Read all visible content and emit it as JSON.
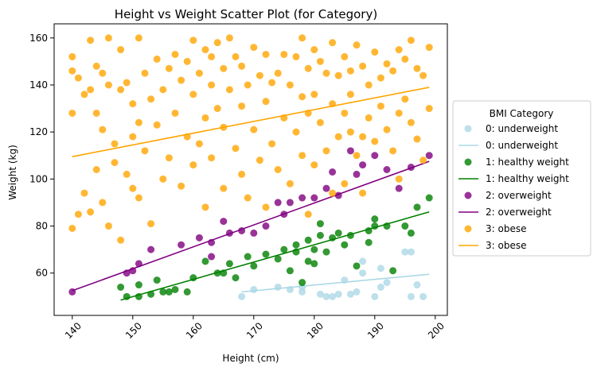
{
  "chart_data": {
    "type": "scatter",
    "title": "Height vs Weight Scatter Plot (for Category)",
    "xlabel": "Height (cm)",
    "ylabel": "Weight (kg)",
    "xlim": [
      137,
      202
    ],
    "ylim": [
      42,
      166
    ],
    "xticks": [
      140,
      150,
      160,
      170,
      180,
      190,
      200
    ],
    "yticks": [
      60,
      80,
      100,
      120,
      140,
      160
    ],
    "grid": false,
    "legend": {
      "title": "BMI Category",
      "placement": "right"
    },
    "series": [
      {
        "name": "0: underweight",
        "color": "#add8e6",
        "fit_label": "0: underweight",
        "fit": [
          [
            168,
            52
          ],
          [
            199,
            59.5
          ]
        ],
        "points": [
          [
            168,
            50
          ],
          [
            170,
            53
          ],
          [
            174,
            54
          ],
          [
            176,
            53
          ],
          [
            178,
            54
          ],
          [
            178,
            52
          ],
          [
            181,
            51
          ],
          [
            182,
            50
          ],
          [
            183,
            50
          ],
          [
            184,
            51
          ],
          [
            185,
            57
          ],
          [
            186,
            51
          ],
          [
            187,
            52
          ],
          [
            188,
            65
          ],
          [
            188,
            60
          ],
          [
            190,
            50
          ],
          [
            191,
            62
          ],
          [
            191,
            54
          ],
          [
            192,
            56
          ],
          [
            195,
            69
          ],
          [
            196,
            69
          ],
          [
            196,
            50
          ],
          [
            197,
            55
          ],
          [
            198,
            50
          ]
        ]
      },
      {
        "name": "1: healthy weight",
        "color": "#008000",
        "fit_label": "1: healthy weight",
        "fit": [
          [
            148,
            48.5
          ],
          [
            199,
            86
          ]
        ],
        "points": [
          [
            148,
            54
          ],
          [
            149,
            50
          ],
          [
            151,
            50
          ],
          [
            151,
            55
          ],
          [
            153,
            51
          ],
          [
            154,
            57
          ],
          [
            155,
            52
          ],
          [
            156,
            52
          ],
          [
            157,
            53
          ],
          [
            159,
            52
          ],
          [
            160,
            58
          ],
          [
            162,
            65
          ],
          [
            164,
            60
          ],
          [
            165,
            60
          ],
          [
            166,
            64
          ],
          [
            167,
            58
          ],
          [
            169,
            67
          ],
          [
            170,
            63
          ],
          [
            172,
            68
          ],
          [
            174,
            66
          ],
          [
            175,
            70
          ],
          [
            176,
            61
          ],
          [
            177,
            72
          ],
          [
            177,
            69
          ],
          [
            178,
            56
          ],
          [
            179,
            65
          ],
          [
            179,
            74
          ],
          [
            180,
            64
          ],
          [
            180,
            70
          ],
          [
            181,
            81
          ],
          [
            181,
            76
          ],
          [
            182,
            69
          ],
          [
            183,
            75
          ],
          [
            184,
            77
          ],
          [
            185,
            72
          ],
          [
            186,
            76
          ],
          [
            187,
            63
          ],
          [
            189,
            73
          ],
          [
            189,
            78
          ],
          [
            190,
            80
          ],
          [
            190,
            83
          ],
          [
            192,
            80
          ],
          [
            193,
            61
          ],
          [
            195,
            80
          ],
          [
            196,
            77
          ],
          [
            197,
            88
          ],
          [
            199,
            92
          ]
        ]
      },
      {
        "name": "2: overweight",
        "color": "#800080",
        "fit_label": "2: overweight",
        "fit": [
          [
            140,
            52.5
          ],
          [
            199,
            107.5
          ]
        ],
        "points": [
          [
            140,
            52
          ],
          [
            149,
            60
          ],
          [
            150,
            61
          ],
          [
            151,
            64
          ],
          [
            153,
            70
          ],
          [
            158,
            72
          ],
          [
            161,
            75
          ],
          [
            163,
            73
          ],
          [
            163,
            67
          ],
          [
            165,
            82
          ],
          [
            166,
            77
          ],
          [
            168,
            78
          ],
          [
            170,
            77
          ],
          [
            172,
            80
          ],
          [
            174,
            90
          ],
          [
            175,
            85
          ],
          [
            176,
            90
          ],
          [
            178,
            92
          ],
          [
            180,
            92
          ],
          [
            182,
            96
          ],
          [
            183,
            103
          ],
          [
            184,
            93
          ],
          [
            186,
            112
          ],
          [
            187,
            102
          ],
          [
            188,
            106
          ],
          [
            190,
            110
          ],
          [
            192,
            104
          ],
          [
            194,
            96
          ],
          [
            196,
            105
          ],
          [
            199,
            110
          ]
        ]
      },
      {
        "name": "3: obese",
        "color": "#ffa500",
        "fit_label": "3: obese",
        "fit": [
          [
            140,
            109.5
          ],
          [
            199,
            139
          ]
        ],
        "points": [
          [
            140,
            152
          ],
          [
            140,
            146
          ],
          [
            140,
            128
          ],
          [
            140,
            79
          ],
          [
            141,
            143
          ],
          [
            141,
            85
          ],
          [
            142,
            136
          ],
          [
            142,
            94
          ],
          [
            143,
            159
          ],
          [
            143,
            138
          ],
          [
            143,
            86
          ],
          [
            144,
            148
          ],
          [
            144,
            128
          ],
          [
            144,
            104
          ],
          [
            145,
            145
          ],
          [
            145,
            121
          ],
          [
            145,
            90
          ],
          [
            146,
            160
          ],
          [
            146,
            140
          ],
          [
            146,
            80
          ],
          [
            147,
            115
          ],
          [
            147,
            107
          ],
          [
            148,
            155
          ],
          [
            148,
            138
          ],
          [
            148,
            74
          ],
          [
            149,
            141
          ],
          [
            149,
            102
          ],
          [
            150,
            132
          ],
          [
            150,
            118
          ],
          [
            150,
            96
          ],
          [
            151,
            160
          ],
          [
            151,
            124
          ],
          [
            151,
            92
          ],
          [
            152,
            145
          ],
          [
            152,
            112
          ],
          [
            153,
            134
          ],
          [
            153,
            81
          ],
          [
            154,
            151
          ],
          [
            154,
            123
          ],
          [
            155,
            138
          ],
          [
            155,
            100
          ],
          [
            156,
            147
          ],
          [
            156,
            109
          ],
          [
            157,
            153
          ],
          [
            157,
            128
          ],
          [
            158,
            142
          ],
          [
            158,
            97
          ],
          [
            159,
            150
          ],
          [
            159,
            118
          ],
          [
            160,
            159
          ],
          [
            160,
            136
          ],
          [
            160,
            106
          ],
          [
            161,
            145
          ],
          [
            161,
            115
          ],
          [
            162,
            155
          ],
          [
            162,
            126
          ],
          [
            162,
            88
          ],
          [
            163,
            152
          ],
          [
            163,
            140
          ],
          [
            163,
            109
          ],
          [
            164,
            158
          ],
          [
            164,
            130
          ],
          [
            165,
            147
          ],
          [
            165,
            122
          ],
          [
            165,
            96
          ],
          [
            166,
            160
          ],
          [
            166,
            138
          ],
          [
            167,
            152
          ],
          [
            167,
            113
          ],
          [
            168,
            148
          ],
          [
            168,
            131
          ],
          [
            168,
            102
          ],
          [
            169,
            140
          ],
          [
            169,
            92
          ],
          [
            170,
            156
          ],
          [
            170,
            121
          ],
          [
            171,
            144
          ],
          [
            171,
            108
          ],
          [
            172,
            153
          ],
          [
            172,
            133
          ],
          [
            172,
            88
          ],
          [
            173,
            141
          ],
          [
            173,
            115
          ],
          [
            174,
            145
          ],
          [
            174,
            104
          ],
          [
            175,
            153
          ],
          [
            175,
            126
          ],
          [
            176,
            140
          ],
          [
            176,
            98
          ],
          [
            177,
            152
          ],
          [
            177,
            120
          ],
          [
            178,
            160
          ],
          [
            178,
            135
          ],
          [
            178,
            110
          ],
          [
            179,
            147
          ],
          [
            179,
            128
          ],
          [
            179,
            85
          ],
          [
            180,
            155
          ],
          [
            180,
            136
          ],
          [
            180,
            106
          ],
          [
            181,
            150
          ],
          [
            181,
            124
          ],
          [
            182,
            145
          ],
          [
            182,
            112
          ],
          [
            183,
            158
          ],
          [
            183,
            132
          ],
          [
            183,
            94
          ],
          [
            184,
            144
          ],
          [
            184,
            118
          ],
          [
            185,
            152
          ],
          [
            185,
            128
          ],
          [
            185,
            98
          ],
          [
            186,
            146
          ],
          [
            186,
            136
          ],
          [
            186,
            120
          ],
          [
            187,
            157
          ],
          [
            187,
            110
          ],
          [
            188,
            148
          ],
          [
            188,
            118
          ],
          [
            188,
            94
          ],
          [
            189,
            140
          ],
          [
            189,
            126
          ],
          [
            190,
            154
          ],
          [
            190,
            116
          ],
          [
            191,
            143
          ],
          [
            191,
            131
          ],
          [
            192,
            149
          ],
          [
            192,
            121
          ],
          [
            193,
            146
          ],
          [
            193,
            112
          ],
          [
            194,
            155
          ],
          [
            194,
            128
          ],
          [
            194,
            100
          ],
          [
            195,
            151
          ],
          [
            195,
            134
          ],
          [
            196,
            159
          ],
          [
            196,
            124
          ],
          [
            197,
            147
          ],
          [
            197,
            117
          ],
          [
            198,
            144
          ],
          [
            198,
            108
          ],
          [
            199,
            156
          ],
          [
            199,
            130
          ]
        ]
      }
    ]
  }
}
